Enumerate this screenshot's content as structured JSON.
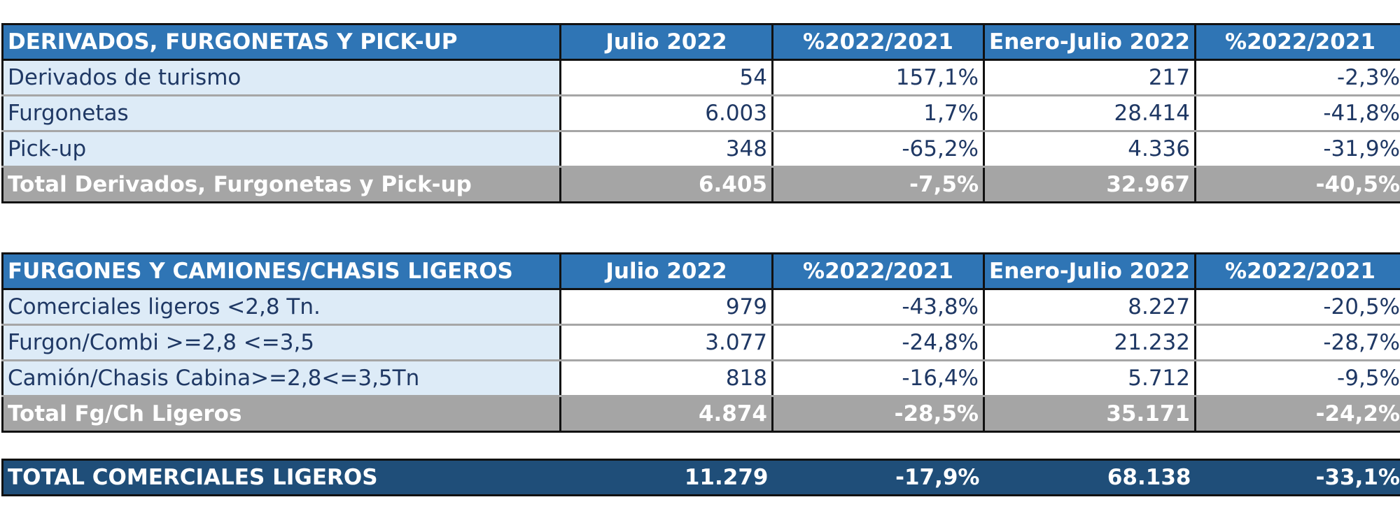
{
  "table1": {
    "headers": [
      "DERIVADOS, FURGONETAS Y PICK-UP",
      "Julio 2022",
      "%2022/2021",
      "Enero-Julio 2022",
      "%2022/2021"
    ],
    "rows": [
      [
        "Derivados de turismo",
        "54",
        "157,1%",
        "217",
        "-2,3%"
      ],
      [
        "Furgonetas",
        "6.003",
        "1,7%",
        "28.414",
        "-41,8%"
      ],
      [
        "Pick-up",
        "348",
        "-65,2%",
        "4.336",
        "-31,9%"
      ]
    ],
    "total": [
      "Total Derivados, Furgonetas y Pick-up",
      "6.405",
      "-7,5%",
      "32.967",
      "-40,5%"
    ]
  },
  "table2": {
    "headers": [
      "FURGONES Y CAMIONES/CHASIS LIGEROS",
      "Julio 2022",
      "%2022/2021",
      "Enero-Julio 2022",
      "%2022/2021"
    ],
    "rows": [
      [
        "Comerciales ligeros <2,8 Tn.",
        "979",
        "-43,8%",
        "8.227",
        "-20,5%"
      ],
      [
        "Furgon/Combi >=2,8 <=3,5",
        "3.077",
        "-24,8%",
        "21.232",
        "-28,7%"
      ],
      [
        "Camión/Chasis Cabina>=2,8<=3,5Tn",
        "818",
        "-16,4%",
        "5.712",
        "-9,5%"
      ]
    ],
    "total": [
      "Total Fg/Ch Ligeros",
      "4.874",
      "-28,5%",
      "35.171",
      "-24,2%"
    ]
  },
  "grand_total": [
    "TOTAL COMERCIALES LIGEROS",
    "11.279",
    "-17,9%",
    "68.138",
    "-33,1%"
  ]
}
